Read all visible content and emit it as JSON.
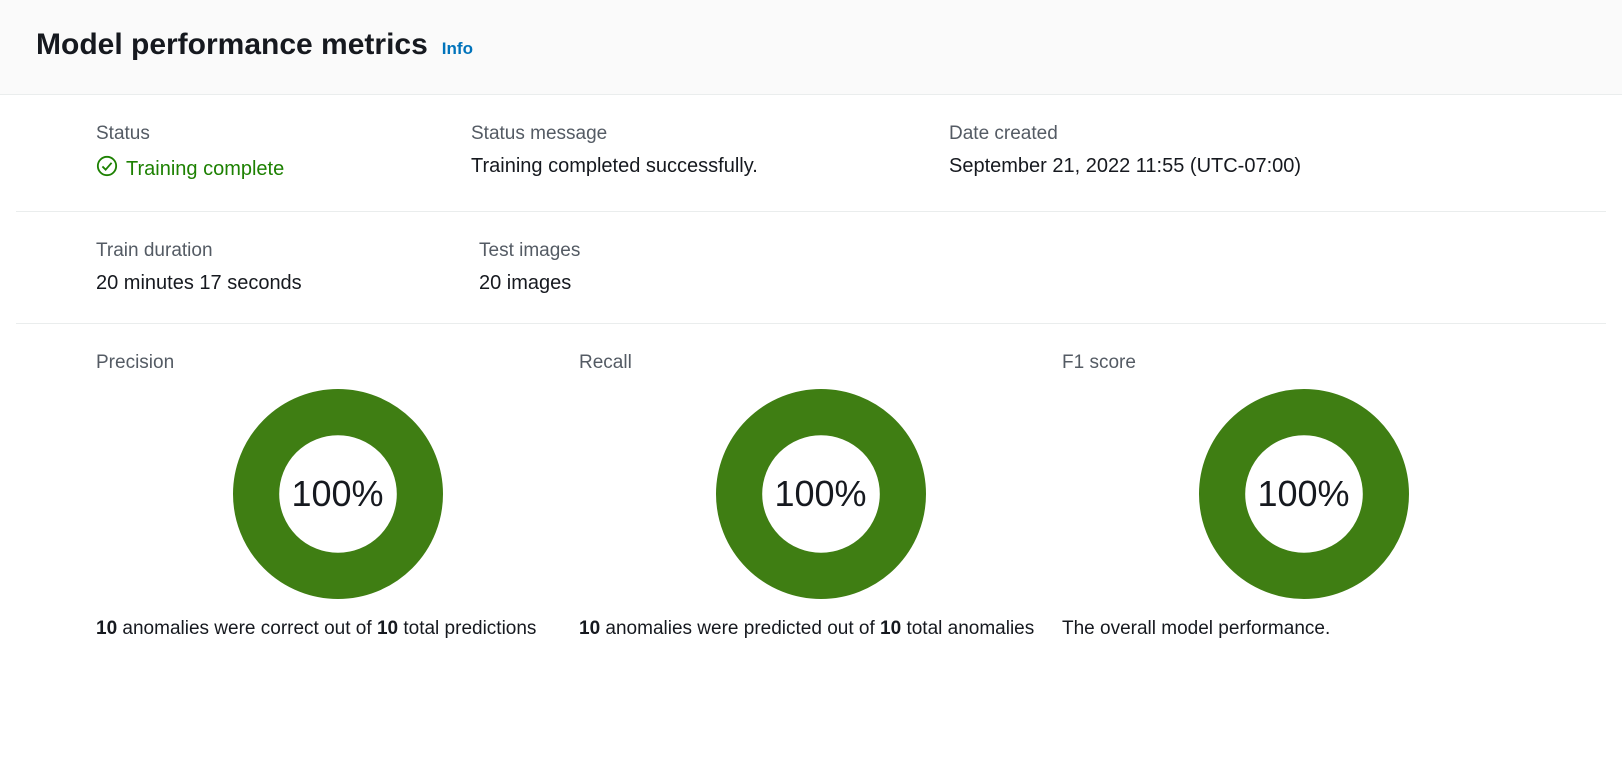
{
  "header": {
    "title": "Model performance metrics",
    "info_label": "Info"
  },
  "overview": {
    "status": {
      "label": "Status",
      "value": "Training complete",
      "color": "#1d8102",
      "icon_stroke": "#1d8102"
    },
    "status_message": {
      "label": "Status message",
      "value": "Training completed successfully."
    },
    "date_created": {
      "label": "Date created",
      "value": "September 21, 2022 11:55 (UTC-07:00)"
    },
    "train_duration": {
      "label": "Train duration",
      "value": "20 minutes 17 seconds"
    },
    "test_images": {
      "label": "Test images",
      "value": "20 images"
    }
  },
  "metrics": {
    "precision": {
      "label": "Precision",
      "percent": 100,
      "display": "100%",
      "ring_color": "#3f7e13",
      "ring_bg": "#ffffff",
      "ring_thickness": 22,
      "desc_correct": "10",
      "desc_mid": " anomalies were correct out of ",
      "desc_total": "10",
      "desc_tail": " total predictions"
    },
    "recall": {
      "label": "Recall",
      "percent": 100,
      "display": "100%",
      "ring_color": "#3f7e13",
      "ring_bg": "#ffffff",
      "ring_thickness": 22,
      "desc_correct": "10",
      "desc_mid": " anomalies were predicted out of ",
      "desc_total": "10",
      "desc_tail": " total anomalies"
    },
    "f1": {
      "label": "F1 score",
      "percent": 100,
      "display": "100%",
      "ring_color": "#3f7e13",
      "ring_bg": "#ffffff",
      "ring_thickness": 22,
      "desc_text": "The overall model performance."
    }
  }
}
